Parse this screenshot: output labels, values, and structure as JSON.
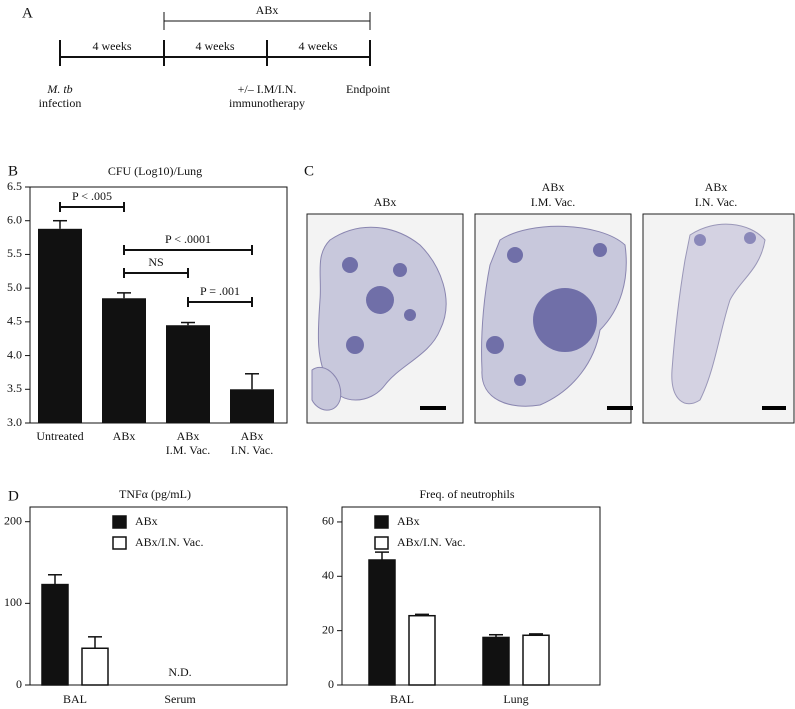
{
  "panel_labels": [
    "A",
    "B",
    "C",
    "D"
  ],
  "timeline": {
    "bracket_label": "ABx",
    "intervals": [
      "4 weeks",
      "4 weeks",
      "4 weeks"
    ],
    "events": [
      [
        "M. tb",
        "infection"
      ],
      [
        "+/– I.M/I.N.",
        "immunotherapy"
      ],
      [
        "Endpoint"
      ]
    ]
  },
  "histology": {
    "panels": [
      {
        "title": [
          "ABx"
        ]
      },
      {
        "title": [
          "ABx",
          "I.M. Vac."
        ]
      },
      {
        "title": [
          "ABx",
          "I.N. Vac."
        ]
      }
    ]
  },
  "chart_data": [
    {
      "type": "bar",
      "title": "CFU (Log10)/Lung",
      "categories": [
        [
          "Untreated"
        ],
        [
          "ABx"
        ],
        [
          "ABx",
          "I.M. Vac."
        ],
        [
          "ABx",
          "I.N. Vac."
        ]
      ],
      "values": [
        5.88,
        4.85,
        4.45,
        3.5
      ],
      "errors": [
        0.12,
        0.08,
        0.04,
        0.23
      ],
      "color": "#111111",
      "ylim": [
        3,
        6.5
      ],
      "yticks": [
        {
          "value": 3,
          "label": "3.0"
        },
        {
          "value": 3.5,
          "label": "3.5"
        },
        {
          "value": 4,
          "label": "4.0"
        },
        {
          "value": 4.5,
          "label": "4.5"
        },
        {
          "value": 5,
          "label": "5.0"
        },
        {
          "value": 5.5,
          "label": "5.5"
        },
        {
          "value": 6,
          "label": "6.0"
        },
        {
          "value": 6.5,
          "label": "6.5"
        }
      ],
      "annotations": [
        "P < .005",
        "P < .0001",
        "NS",
        "P = .001"
      ]
    },
    {
      "type": "grouped_bar",
      "title": "TNFα (pg/mL)",
      "categories": [
        "BAL",
        "Serum"
      ],
      "series": [
        {
          "name": "ABx",
          "color": "#111111",
          "values": [
            123,
            null
          ],
          "errors": [
            12,
            null
          ]
        },
        {
          "name": "ABx/I.N. Vac.",
          "color": "#ffffff",
          "values": [
            45,
            null
          ],
          "errors": [
            14,
            null
          ]
        }
      ],
      "ylim": [
        0,
        218
      ],
      "yticks": [
        0,
        100,
        200
      ],
      "annotations": [
        "N.D."
      ]
    },
    {
      "type": "grouped_bar",
      "title": "Freq. of neutrophils",
      "categories": [
        "BAL",
        "Lung"
      ],
      "series": [
        {
          "name": "ABx",
          "color": "#111111",
          "values": [
            46,
            17.5
          ],
          "errors": [
            2.9,
            1
          ]
        },
        {
          "name": "ABx/I.N. Vac.",
          "color": "#ffffff",
          "values": [
            25.5,
            18.3
          ],
          "errors": [
            0.5,
            0.5
          ]
        }
      ],
      "ylim": [
        0,
        65.5
      ],
      "yticks": [
        0,
        20,
        40,
        60
      ]
    }
  ]
}
